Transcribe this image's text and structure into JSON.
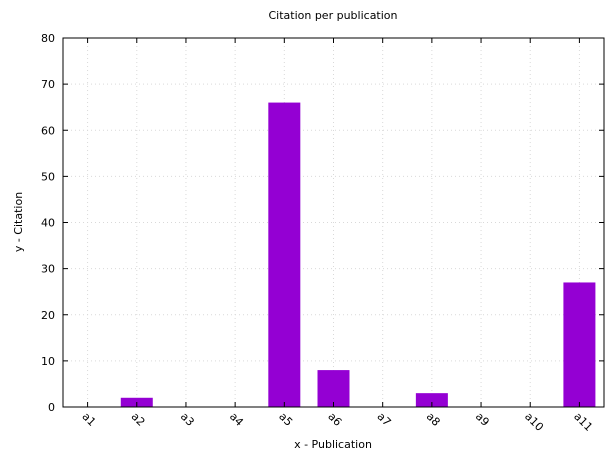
{
  "chart_data": {
    "type": "bar",
    "title": "Citation per publication",
    "xlabel": "x - Publication",
    "ylabel": "y - Citation",
    "categories": [
      "a1",
      "a2",
      "a3",
      "a4",
      "a5",
      "a6",
      "a7",
      "a8",
      "a9",
      "a10",
      "a11"
    ],
    "values": [
      0,
      2,
      0,
      0,
      66,
      8,
      0,
      3,
      0,
      0,
      27
    ],
    "ylim": [
      0,
      80
    ],
    "yticks": [
      0,
      10,
      20,
      30,
      40,
      50,
      60,
      70,
      80
    ],
    "grid": true,
    "bar_color": "#9400d3"
  }
}
